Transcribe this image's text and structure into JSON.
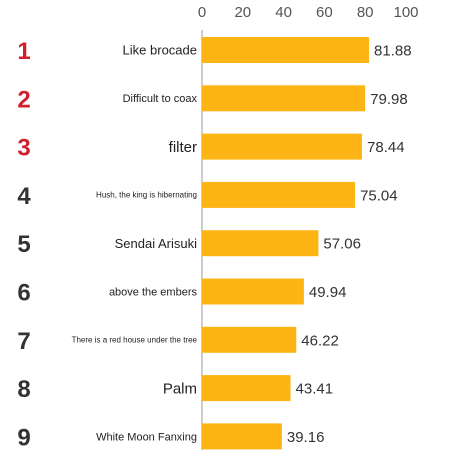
{
  "chart_data": {
    "type": "bar",
    "orientation": "horizontal",
    "categories": [
      "Like brocade",
      "Difficult to coax",
      "filter",
      "Hush, the king is hibernating",
      "Sendai Arisuki",
      "above the embers",
      "There is a red house under the tree",
      "Palm",
      "White Moon Fanxing"
    ],
    "ranks": [
      "1",
      "2",
      "3",
      "4",
      "5",
      "6",
      "7",
      "8",
      "9"
    ],
    "values": [
      81.88,
      79.98,
      78.44,
      75.04,
      57.06,
      49.94,
      46.22,
      43.41,
      39.16
    ],
    "value_labels": [
      "81.88",
      "79.98",
      "78.44",
      "75.04",
      "57.06",
      "49.94",
      "46.22",
      "43.41",
      "39.16"
    ],
    "x_ticks": [
      "0",
      "20",
      "40",
      "60",
      "80",
      "100"
    ],
    "xlim": [
      0,
      100
    ],
    "x_axis_position": "top",
    "grid": false,
    "title": "",
    "xlabel": "",
    "ylabel": "",
    "colors": {
      "bar": "#FDB515",
      "rank_top": "#D0202E",
      "rank_other": "#333333",
      "axis_line": "#999999"
    }
  }
}
